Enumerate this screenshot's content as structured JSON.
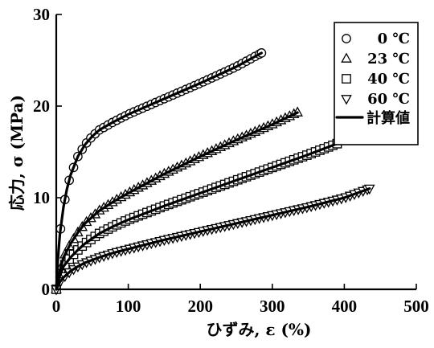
{
  "chart_data": {
    "type": "scatter",
    "title": "",
    "xlabel": "ひずみ, ε (%)",
    "ylabel": "応力, σ (MPa)",
    "xlim": [
      0,
      500
    ],
    "ylim": [
      0,
      30
    ],
    "x_ticks": [
      "0",
      "100",
      "200",
      "300",
      "400",
      "500"
    ],
    "y_ticks": [
      "0",
      "10",
      "20",
      "30"
    ],
    "grid": false,
    "legend_position": "top-right",
    "series": [
      {
        "name": "0 ℃",
        "marker": "circle",
        "x": [
          0,
          2,
          5,
          10,
          15,
          20,
          30,
          40,
          50,
          60,
          80,
          100,
          150,
          200,
          250,
          285
        ],
        "y": [
          0,
          3,
          6,
          9,
          11,
          12.5,
          14.5,
          15.8,
          16.7,
          17.4,
          18.3,
          19.1,
          20.8,
          22.5,
          24.3,
          25.8
        ]
      },
      {
        "name": "23 ℃",
        "marker": "triangle-up",
        "x": [
          0,
          5,
          10,
          20,
          30,
          40,
          60,
          80,
          100,
          150,
          200,
          250,
          300,
          335
        ],
        "y": [
          0,
          2,
          3.5,
          5,
          6.2,
          7.2,
          8.6,
          9.6,
          10.5,
          12.6,
          14.5,
          16.3,
          18,
          19.3
        ]
      },
      {
        "name": "40 ℃",
        "marker": "square",
        "x": [
          0,
          5,
          10,
          20,
          30,
          40,
          60,
          80,
          100,
          150,
          200,
          250,
          300,
          350,
          390
        ],
        "y": [
          0,
          1.5,
          2.5,
          3.5,
          4.3,
          5,
          6.1,
          6.9,
          7.6,
          9.1,
          10.5,
          11.9,
          13.3,
          14.7,
          15.9
        ]
      },
      {
        "name": "60 ℃",
        "marker": "triangle-down",
        "x": [
          0,
          5,
          10,
          20,
          30,
          40,
          60,
          80,
          100,
          150,
          200,
          250,
          300,
          350,
          400,
          435
        ],
        "y": [
          0,
          0.8,
          1.3,
          2,
          2.5,
          2.9,
          3.5,
          4,
          4.4,
          5.4,
          6.3,
          7.2,
          8.1,
          9,
          10,
          11
        ]
      }
    ],
    "fit_line_label": "計算値"
  }
}
